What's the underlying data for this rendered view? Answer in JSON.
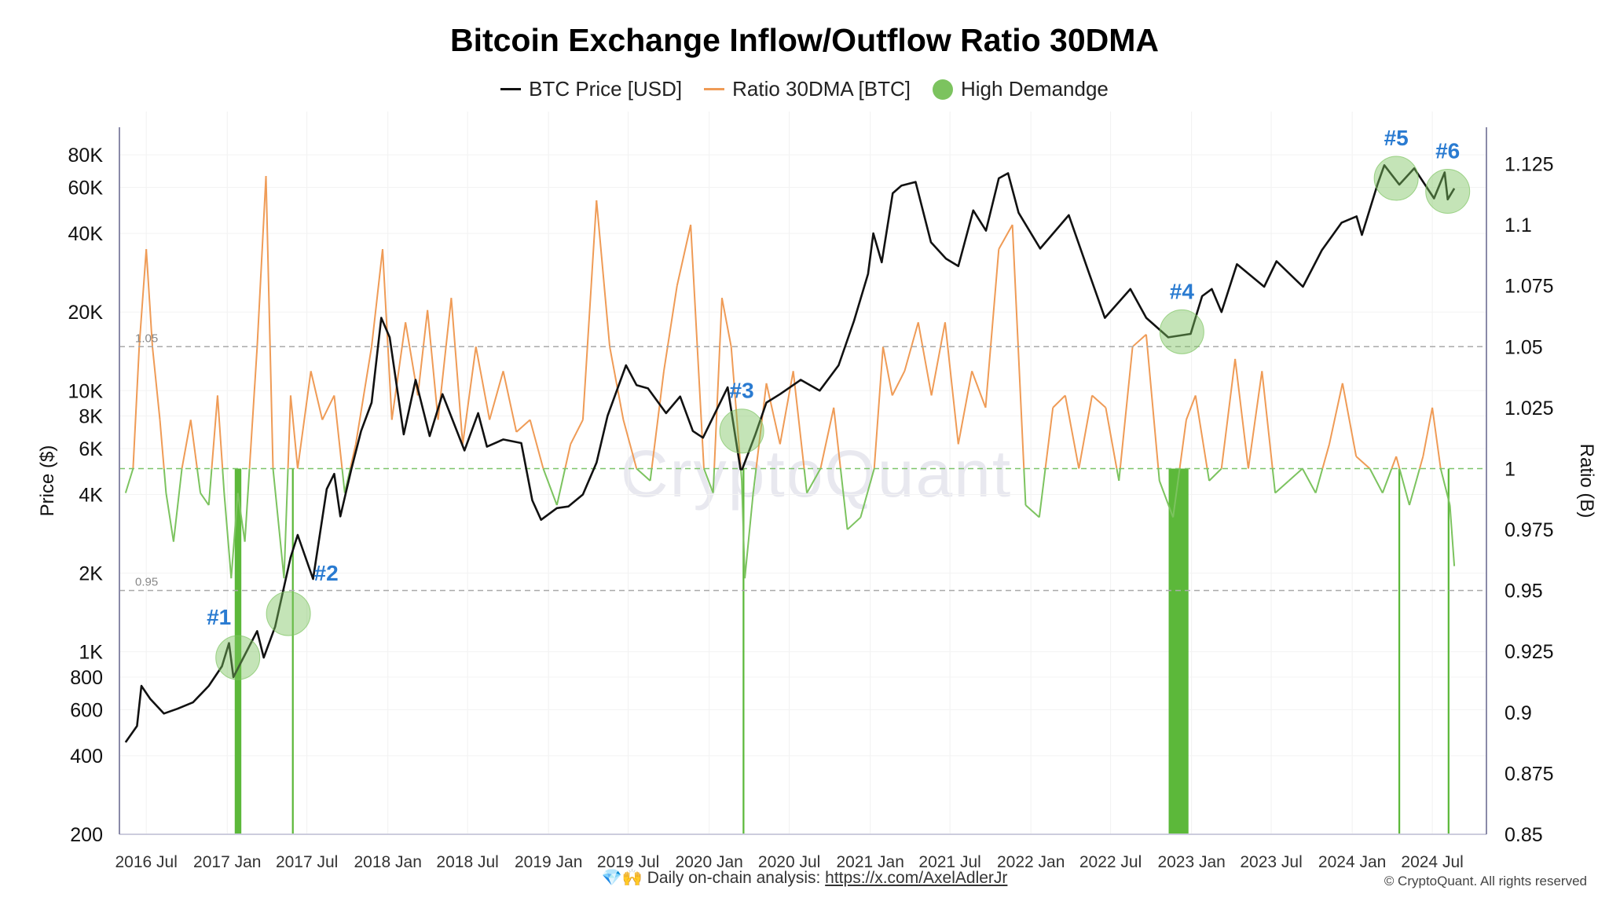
{
  "chart_data": {
    "type": "line",
    "title": "Bitcoin Exchange Inflow/Outflow Ratio 30DMA",
    "watermark": "CryptoQuant",
    "y_left_label": "Price ($)",
    "y_right_label": "Ratio (B)",
    "y_left_scale": "log",
    "y_left_ticks": [
      {
        "value": 200,
        "label": "200"
      },
      {
        "value": 400,
        "label": "400"
      },
      {
        "value": 600,
        "label": "600"
      },
      {
        "value": 800,
        "label": "800"
      },
      {
        "value": 1000,
        "label": "1K"
      },
      {
        "value": 2000,
        "label": "2K"
      },
      {
        "value": 4000,
        "label": "4K"
      },
      {
        "value": 6000,
        "label": "6K"
      },
      {
        "value": 8000,
        "label": "8K"
      },
      {
        "value": 10000,
        "label": "10K"
      },
      {
        "value": 20000,
        "label": "20K"
      },
      {
        "value": 40000,
        "label": "40K"
      },
      {
        "value": 60000,
        "label": "60K"
      },
      {
        "value": 80000,
        "label": "80K"
      }
    ],
    "y_right_ticks": [
      0.85,
      0.875,
      0.9,
      0.925,
      0.95,
      0.975,
      1,
      1.025,
      1.05,
      1.075,
      1.1,
      1.125
    ],
    "x_ticks": [
      "2016 Jul",
      "2017 Jan",
      "2017 Jul",
      "2018 Jan",
      "2018 Jul",
      "2019 Jan",
      "2019 Jul",
      "2020 Jan",
      "2020 Jul",
      "2021 Jan",
      "2021 Jul",
      "2022 Jan",
      "2022 Jul",
      "2023 Jan",
      "2023 Jul",
      "2024 Jan",
      "2024 Jul"
    ],
    "reference_lines": [
      {
        "value": 1.05,
        "label": "1.05",
        "color": "#aaaaaa"
      },
      {
        "value": 1.0,
        "label": "",
        "color": "#7dc46a"
      },
      {
        "value": 0.95,
        "label": "0.95",
        "color": "#aaaaaa"
      }
    ],
    "legend_position": "top",
    "series": [
      {
        "name": "BTC Price [USD]",
        "color": "#111111",
        "axis": "left",
        "points": [
          [
            "2016-05-15",
            450
          ],
          [
            "2016-06-10",
            520
          ],
          [
            "2016-06-20",
            740
          ],
          [
            "2016-07-10",
            660
          ],
          [
            "2016-08-10",
            580
          ],
          [
            "2016-09-10",
            605
          ],
          [
            "2016-10-15",
            640
          ],
          [
            "2016-11-20",
            740
          ],
          [
            "2016-12-20",
            880
          ],
          [
            "2017-01-05",
            1080
          ],
          [
            "2017-01-15",
            800
          ],
          [
            "2017-02-20",
            1050
          ],
          [
            "2017-03-10",
            1200
          ],
          [
            "2017-03-25",
            950
          ],
          [
            "2017-04-20",
            1250
          ],
          [
            "2017-05-25",
            2300
          ],
          [
            "2017-06-10",
            2800
          ],
          [
            "2017-07-15",
            1900
          ],
          [
            "2017-08-15",
            4200
          ],
          [
            "2017-09-01",
            4800
          ],
          [
            "2017-09-15",
            3300
          ],
          [
            "2017-10-10",
            5000
          ],
          [
            "2017-11-01",
            7000
          ],
          [
            "2017-11-25",
            9000
          ],
          [
            "2017-12-17",
            19000
          ],
          [
            "2018-01-05",
            16000
          ],
          [
            "2018-02-06",
            6800
          ],
          [
            "2018-03-05",
            11000
          ],
          [
            "2018-04-06",
            6700
          ],
          [
            "2018-05-05",
            9700
          ],
          [
            "2018-06-24",
            5900
          ],
          [
            "2018-07-25",
            8200
          ],
          [
            "2018-08-14",
            6100
          ],
          [
            "2018-09-20",
            6500
          ],
          [
            "2018-10-31",
            6300
          ],
          [
            "2018-11-25",
            3800
          ],
          [
            "2018-12-15",
            3200
          ],
          [
            "2019-01-20",
            3550
          ],
          [
            "2019-02-15",
            3600
          ],
          [
            "2019-03-20",
            4000
          ],
          [
            "2019-04-20",
            5300
          ],
          [
            "2019-05-15",
            8000
          ],
          [
            "2019-06-26",
            12500
          ],
          [
            "2019-07-20",
            10500
          ],
          [
            "2019-08-15",
            10200
          ],
          [
            "2019-09-25",
            8200
          ],
          [
            "2019-10-27",
            9500
          ],
          [
            "2019-11-25",
            7000
          ],
          [
            "2019-12-18",
            6600
          ],
          [
            "2020-02-12",
            10300
          ],
          [
            "2020-03-12",
            5000
          ],
          [
            "2020-03-16",
            5000
          ],
          [
            "2020-04-15",
            6800
          ],
          [
            "2020-05-10",
            9000
          ],
          [
            "2020-06-10",
            9700
          ],
          [
            "2020-07-27",
            11000
          ],
          [
            "2020-09-08",
            10000
          ],
          [
            "2020-10-21",
            12500
          ],
          [
            "2020-11-25",
            18500
          ],
          [
            "2020-12-27",
            28000
          ],
          [
            "2021-01-08",
            40000
          ],
          [
            "2021-01-27",
            31000
          ],
          [
            "2021-02-21",
            57000
          ],
          [
            "2021-03-13",
            61000
          ],
          [
            "2021-04-14",
            63000
          ],
          [
            "2021-05-19",
            37000
          ],
          [
            "2021-06-22",
            32000
          ],
          [
            "2021-07-20",
            30000
          ],
          [
            "2021-08-23",
            49000
          ],
          [
            "2021-09-21",
            41000
          ],
          [
            "2021-10-20",
            65000
          ],
          [
            "2021-11-10",
            68000
          ],
          [
            "2021-12-04",
            48000
          ],
          [
            "2022-01-22",
            35000
          ],
          [
            "2022-03-28",
            47000
          ],
          [
            "2022-05-12",
            28500
          ],
          [
            "2022-06-18",
            19000
          ],
          [
            "2022-08-15",
            24500
          ],
          [
            "2022-09-20",
            19000
          ],
          [
            "2022-11-09",
            16000
          ],
          [
            "2022-12-30",
            16500
          ],
          [
            "2023-01-25",
            23000
          ],
          [
            "2023-02-16",
            24500
          ],
          [
            "2023-03-10",
            20000
          ],
          [
            "2023-04-14",
            30500
          ],
          [
            "2023-06-15",
            25000
          ],
          [
            "2023-07-13",
            31300
          ],
          [
            "2023-09-11",
            25000
          ],
          [
            "2023-10-24",
            34500
          ],
          [
            "2023-12-08",
            44000
          ],
          [
            "2024-01-11",
            46500
          ],
          [
            "2024-01-23",
            39500
          ],
          [
            "2024-02-28",
            62000
          ],
          [
            "2024-03-14",
            73000
          ],
          [
            "2024-04-17",
            61500
          ],
          [
            "2024-05-21",
            71000
          ],
          [
            "2024-07-05",
            54500
          ],
          [
            "2024-07-29",
            68500
          ],
          [
            "2024-08-05",
            54000
          ],
          [
            "2024-08-20",
            59500
          ]
        ]
      },
      {
        "name": "Ratio 30DMA [BTC]",
        "color": "#ef9b56",
        "axis": "right",
        "high_demand_color": "#7cc35f",
        "points": [
          [
            "2016-05-15",
            0.99
          ],
          [
            "2016-06-01",
            1.0
          ],
          [
            "2016-06-15",
            1.05
          ],
          [
            "2016-07-01",
            1.09
          ],
          [
            "2016-07-15",
            1.05
          ],
          [
            "2016-08-01",
            1.02
          ],
          [
            "2016-08-15",
            0.99
          ],
          [
            "2016-09-01",
            0.97
          ],
          [
            "2016-09-20",
            1.0
          ],
          [
            "2016-10-10",
            1.02
          ],
          [
            "2016-11-01",
            0.99
          ],
          [
            "2016-11-20",
            0.985
          ],
          [
            "2016-12-10",
            1.03
          ],
          [
            "2016-12-25",
            0.99
          ],
          [
            "2017-01-10",
            0.955
          ],
          [
            "2017-01-25",
            0.99
          ],
          [
            "2017-02-10",
            0.97
          ],
          [
            "2017-03-10",
            1.05
          ],
          [
            "2017-03-30",
            1.12
          ],
          [
            "2017-04-15",
            1.0
          ],
          [
            "2017-05-10",
            0.955
          ],
          [
            "2017-05-25",
            1.03
          ],
          [
            "2017-06-10",
            1.0
          ],
          [
            "2017-07-10",
            1.04
          ],
          [
            "2017-08-05",
            1.02
          ],
          [
            "2017-09-01",
            1.03
          ],
          [
            "2017-09-25",
            0.99
          ],
          [
            "2017-10-20",
            1.01
          ],
          [
            "2017-11-25",
            1.05
          ],
          [
            "2017-12-20",
            1.09
          ],
          [
            "2018-01-10",
            1.02
          ],
          [
            "2018-02-10",
            1.06
          ],
          [
            "2018-03-10",
            1.03
          ],
          [
            "2018-04-01",
            1.065
          ],
          [
            "2018-04-25",
            1.02
          ],
          [
            "2018-05-25",
            1.07
          ],
          [
            "2018-06-20",
            1.01
          ],
          [
            "2018-07-20",
            1.05
          ],
          [
            "2018-08-20",
            1.02
          ],
          [
            "2018-09-20",
            1.04
          ],
          [
            "2018-10-20",
            1.015
          ],
          [
            "2018-11-20",
            1.02
          ],
          [
            "2018-12-20",
            1.0
          ],
          [
            "2019-01-20",
            0.985
          ],
          [
            "2019-02-20",
            1.01
          ],
          [
            "2019-03-20",
            1.02
          ],
          [
            "2019-04-20",
            1.11
          ],
          [
            "2019-05-20",
            1.05
          ],
          [
            "2019-06-20",
            1.02
          ],
          [
            "2019-07-20",
            1.0
          ],
          [
            "2019-08-20",
            0.995
          ],
          [
            "2019-09-20",
            1.04
          ],
          [
            "2019-10-20",
            1.075
          ],
          [
            "2019-11-20",
            1.1
          ],
          [
            "2019-12-20",
            1.0
          ],
          [
            "2020-01-10",
            0.99
          ],
          [
            "2020-01-30",
            1.07
          ],
          [
            "2020-02-20",
            1.05
          ],
          [
            "2020-03-15",
            0.995
          ],
          [
            "2020-03-22",
            0.955
          ],
          [
            "2020-04-10",
            0.99
          ],
          [
            "2020-05-10",
            1.035
          ],
          [
            "2020-06-10",
            1.01
          ],
          [
            "2020-07-10",
            1.04
          ],
          [
            "2020-08-10",
            0.99
          ],
          [
            "2020-09-10",
            1.0
          ],
          [
            "2020-10-10",
            1.025
          ],
          [
            "2020-11-10",
            0.975
          ],
          [
            "2020-12-10",
            0.98
          ],
          [
            "2021-01-10",
            1.0
          ],
          [
            "2021-01-30",
            1.05
          ],
          [
            "2021-02-20",
            1.03
          ],
          [
            "2021-03-20",
            1.04
          ],
          [
            "2021-04-20",
            1.06
          ],
          [
            "2021-05-20",
            1.03
          ],
          [
            "2021-06-20",
            1.06
          ],
          [
            "2021-07-20",
            1.01
          ],
          [
            "2021-08-20",
            1.04
          ],
          [
            "2021-09-20",
            1.025
          ],
          [
            "2021-10-20",
            1.09
          ],
          [
            "2021-11-20",
            1.1
          ],
          [
            "2021-12-20",
            0.985
          ],
          [
            "2022-01-20",
            0.98
          ],
          [
            "2022-02-20",
            1.025
          ],
          [
            "2022-03-20",
            1.03
          ],
          [
            "2022-04-20",
            1.0
          ],
          [
            "2022-05-20",
            1.03
          ],
          [
            "2022-06-20",
            1.025
          ],
          [
            "2022-07-20",
            0.995
          ],
          [
            "2022-08-20",
            1.05
          ],
          [
            "2022-09-20",
            1.055
          ],
          [
            "2022-10-20",
            0.995
          ],
          [
            "2022-11-20",
            0.98
          ],
          [
            "2022-12-20",
            1.02
          ],
          [
            "2023-01-10",
            1.03
          ],
          [
            "2023-02-10",
            0.995
          ],
          [
            "2023-03-10",
            1.0
          ],
          [
            "2023-04-10",
            1.045
          ],
          [
            "2023-05-10",
            1.0
          ],
          [
            "2023-06-10",
            1.04
          ],
          [
            "2023-07-10",
            0.99
          ],
          [
            "2023-08-10",
            0.995
          ],
          [
            "2023-09-10",
            1.0
          ],
          [
            "2023-10-10",
            0.99
          ],
          [
            "2023-11-10",
            1.01
          ],
          [
            "2023-12-10",
            1.035
          ],
          [
            "2024-01-10",
            1.005
          ],
          [
            "2024-02-10",
            1.0
          ],
          [
            "2024-03-10",
            0.99
          ],
          [
            "2024-04-10",
            1.005
          ],
          [
            "2024-05-10",
            0.985
          ],
          [
            "2024-06-10",
            1.005
          ],
          [
            "2024-07-01",
            1.025
          ],
          [
            "2024-07-20",
            1.0
          ],
          [
            "2024-08-10",
            0.985
          ],
          [
            "2024-08-20",
            0.96
          ]
        ]
      },
      {
        "name": "High Demandge",
        "color": "#7cc35f",
        "type": "bar"
      }
    ],
    "high_demand_bars": [
      {
        "from": "2017-01-18",
        "to": "2017-02-02",
        "value": 0.85
      },
      {
        "from": "2017-05-28",
        "to": "2017-06-01",
        "value": 0.85
      },
      {
        "from": "2020-03-17",
        "to": "2020-03-21",
        "value": 0.85
      },
      {
        "from": "2022-11-10",
        "to": "2022-12-25",
        "value": 0.85
      },
      {
        "from": "2024-04-15",
        "to": "2024-04-19",
        "value": 0.85
      },
      {
        "from": "2024-08-05",
        "to": "2024-08-09",
        "value": 0.85
      }
    ],
    "annotations": [
      {
        "label": "#1",
        "date": "2017-01-25",
        "price": 950
      },
      {
        "label": "#2",
        "date": "2017-05-20",
        "price": 1400
      },
      {
        "label": "#3",
        "date": "2020-03-15",
        "price": 7000
      },
      {
        "label": "#4",
        "date": "2022-12-10",
        "price": 16800
      },
      {
        "label": "#5",
        "date": "2024-04-10",
        "price": 65000
      },
      {
        "label": "#6",
        "date": "2024-08-05",
        "price": 58000
      }
    ]
  },
  "footer": {
    "emoji": "💎🙌",
    "text": "Daily on-chain analysis:",
    "link_text": "https://x.com/AxelAdlerJr"
  },
  "copyright": "© CryptoQuant. All rights reserved"
}
